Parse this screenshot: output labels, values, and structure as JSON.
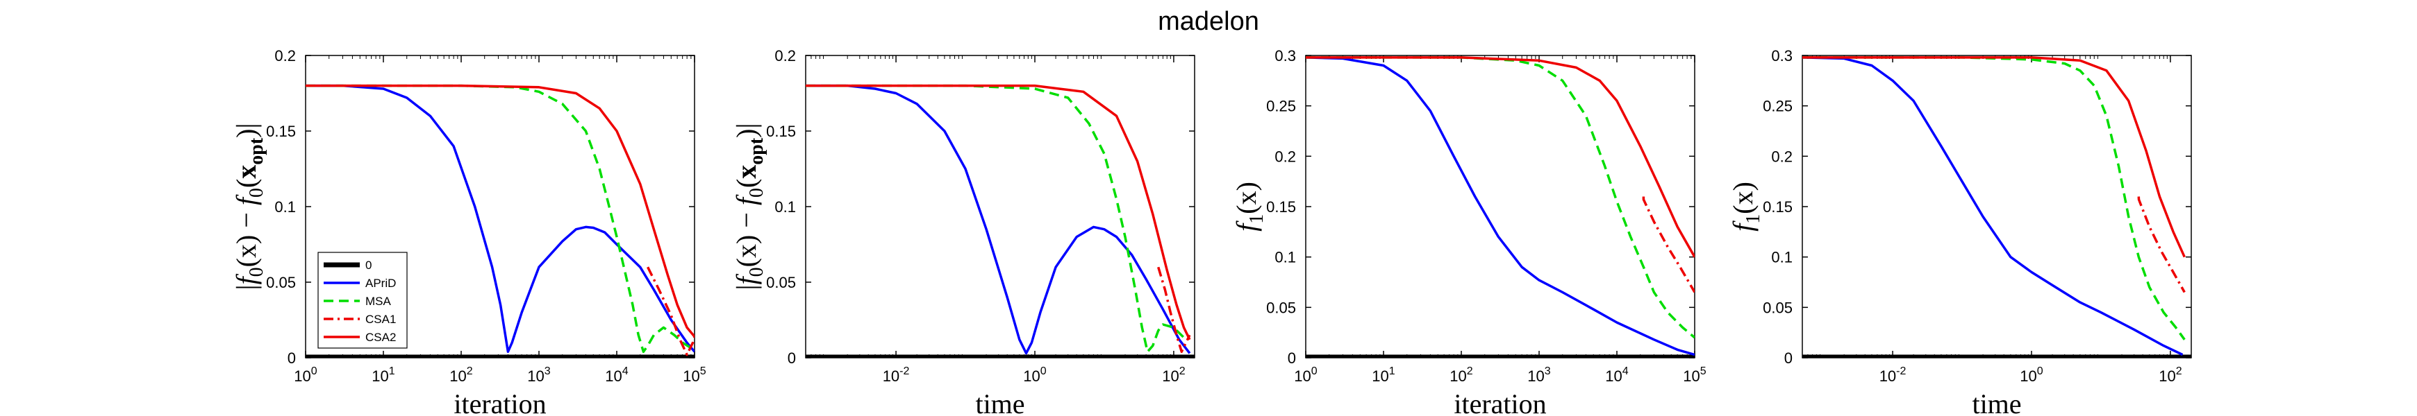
{
  "title": "madelon",
  "colors": {
    "zero": "#000000",
    "APriD": "#0000FF",
    "MSA": "#00DD00",
    "CSA1": "#EE0000",
    "CSA2": "#EE0000"
  },
  "chart_data": [
    {
      "type": "line",
      "xscale": "log",
      "xlabel": "iteration",
      "ylabel": "|f0(x) − f0(xopt)|",
      "ylim": [
        0,
        0.2
      ],
      "xlim": [
        1,
        100000
      ],
      "xticks": [
        1,
        10,
        100,
        1000,
        10000,
        100000
      ],
      "xticklabels": [
        "10^0",
        "10^1",
        "10^2",
        "10^3",
        "10^4",
        "10^5"
      ],
      "yticks": [
        0,
        0.05,
        0.1,
        0.15,
        0.2
      ],
      "yticklabels": [
        "0",
        "0.05",
        "0.1",
        "0.15",
        "0.2"
      ],
      "grid": false,
      "legend": {
        "placement": "lower-left",
        "entries": [
          "0",
          "APriD",
          "MSA",
          "CSA1",
          "CSA2"
        ]
      },
      "series": [
        {
          "name": "0",
          "style": "thick",
          "x": [
            1,
            100000
          ],
          "y": [
            0,
            0
          ]
        },
        {
          "name": "APriD",
          "style": "solid",
          "x": [
            1,
            3,
            10,
            20,
            40,
            80,
            150,
            250,
            320,
            400,
            450,
            600,
            1000,
            2000,
            3000,
            4000,
            5000,
            7000,
            10000,
            20000,
            30000,
            50000,
            80000,
            100000
          ],
          "y": [
            0.18,
            0.18,
            0.178,
            0.172,
            0.16,
            0.14,
            0.1,
            0.06,
            0.035,
            0.004,
            0.01,
            0.03,
            0.06,
            0.077,
            0.085,
            0.0865,
            0.086,
            0.083,
            0.075,
            0.06,
            0.045,
            0.025,
            0.01,
            0.004
          ]
        },
        {
          "name": "MSA",
          "style": "dashed",
          "x": [
            1,
            100,
            500,
            1000,
            2000,
            4000,
            6000,
            8000,
            10000,
            13000,
            16000,
            19000,
            22000,
            25000,
            30000,
            40000,
            55000,
            70000,
            100000
          ],
          "y": [
            0.18,
            0.18,
            0.179,
            0.176,
            0.168,
            0.15,
            0.125,
            0.1,
            0.08,
            0.055,
            0.035,
            0.015,
            0.004,
            0.008,
            0.015,
            0.02,
            0.015,
            0.01,
            0.005
          ]
        },
        {
          "name": "CSA1",
          "style": "dashdot",
          "x": [
            25000,
            35000,
            50000,
            65000,
            80000,
            95000,
            100000
          ],
          "y": [
            0.06,
            0.045,
            0.028,
            0.012,
            0.002,
            0.01,
            0.014
          ]
        },
        {
          "name": "CSA2",
          "style": "solid",
          "x": [
            1,
            100,
            1000,
            3000,
            6000,
            10000,
            20000,
            30000,
            45000,
            60000,
            80000,
            100000
          ],
          "y": [
            0.18,
            0.18,
            0.179,
            0.175,
            0.165,
            0.15,
            0.115,
            0.085,
            0.055,
            0.035,
            0.02,
            0.014
          ]
        }
      ]
    },
    {
      "type": "line",
      "xscale": "log",
      "xlabel": "time",
      "ylabel": "|f0(x) − f0(xopt)|",
      "ylim": [
        0,
        0.2
      ],
      "xlim": [
        0.0005,
        200
      ],
      "xticks": [
        0.01,
        1,
        100
      ],
      "xticklabels": [
        "10^-2",
        "10^0",
        "10^2"
      ],
      "yticks": [
        0,
        0.05,
        0.1,
        0.15,
        0.2
      ],
      "yticklabels": [
        "0",
        "0.05",
        "0.1",
        "0.15",
        "0.2"
      ],
      "grid": false,
      "series": [
        {
          "name": "0",
          "style": "thick",
          "x": [
            0.0005,
            200
          ],
          "y": [
            0,
            0
          ]
        },
        {
          "name": "APriD",
          "style": "solid",
          "x": [
            0.0005,
            0.002,
            0.005,
            0.01,
            0.02,
            0.05,
            0.1,
            0.2,
            0.4,
            0.6,
            0.75,
            0.9,
            1.2,
            2,
            4,
            7,
            10,
            15,
            25,
            40,
            70,
            120,
            170
          ],
          "y": [
            0.18,
            0.18,
            0.178,
            0.175,
            0.168,
            0.15,
            0.125,
            0.085,
            0.04,
            0.012,
            0.003,
            0.01,
            0.03,
            0.06,
            0.08,
            0.0865,
            0.085,
            0.08,
            0.068,
            0.052,
            0.032,
            0.012,
            0.003
          ]
        },
        {
          "name": "MSA",
          "style": "dashed",
          "x": [
            0.0005,
            0.1,
            1,
            3,
            6,
            10,
            15,
            20,
            28,
            35,
            42,
            50,
            60,
            70,
            100,
            150
          ],
          "y": [
            0.18,
            0.18,
            0.178,
            0.172,
            0.155,
            0.135,
            0.105,
            0.08,
            0.045,
            0.02,
            0.004,
            0.008,
            0.018,
            0.022,
            0.02,
            0.012
          ]
        },
        {
          "name": "CSA1",
          "style": "dashdot",
          "x": [
            60,
            75,
            90,
            110,
            130,
            150,
            170
          ],
          "y": [
            0.06,
            0.045,
            0.03,
            0.015,
            0.004,
            0.01,
            0.015
          ]
        },
        {
          "name": "CSA2",
          "style": "solid",
          "x": [
            0.0005,
            1,
            5,
            15,
            30,
            50,
            80,
            110,
            140,
            170
          ],
          "y": [
            0.18,
            0.18,
            0.176,
            0.16,
            0.13,
            0.095,
            0.058,
            0.035,
            0.02,
            0.012
          ]
        }
      ]
    },
    {
      "type": "line",
      "xscale": "log",
      "xlabel": "iteration",
      "ylabel": "f1(x)",
      "ylim": [
        0,
        0.3
      ],
      "xlim": [
        1,
        100000
      ],
      "xticks": [
        1,
        10,
        100,
        1000,
        10000,
        100000
      ],
      "xticklabels": [
        "10^0",
        "10^1",
        "10^2",
        "10^3",
        "10^4",
        "10^5"
      ],
      "yticks": [
        0,
        0.05,
        0.1,
        0.15,
        0.2,
        0.25,
        0.3
      ],
      "yticklabels": [
        "0",
        "0.05",
        "0.1",
        "0.15",
        "0.2",
        "0.25",
        "0.3"
      ],
      "grid": false,
      "series": [
        {
          "name": "0",
          "style": "thick",
          "x": [
            1,
            100000
          ],
          "y": [
            0,
            0
          ]
        },
        {
          "name": "APriD",
          "style": "solid",
          "x": [
            1,
            3,
            10,
            20,
            40,
            80,
            150,
            300,
            600,
            1000,
            2000,
            5000,
            10000,
            30000,
            60000,
            100000
          ],
          "y": [
            0.298,
            0.297,
            0.29,
            0.275,
            0.245,
            0.2,
            0.16,
            0.12,
            0.09,
            0.077,
            0.065,
            0.048,
            0.035,
            0.018,
            0.008,
            0.003
          ]
        },
        {
          "name": "MSA",
          "style": "dashed",
          "x": [
            1,
            100,
            500,
            1000,
            2000,
            4000,
            7000,
            10000,
            15000,
            22000,
            30000,
            45000,
            70000,
            100000
          ],
          "y": [
            0.298,
            0.298,
            0.295,
            0.29,
            0.275,
            0.24,
            0.19,
            0.155,
            0.12,
            0.09,
            0.065,
            0.045,
            0.03,
            0.02
          ]
        },
        {
          "name": "CSA1",
          "style": "dashdot",
          "x": [
            22000,
            22001,
            30000,
            45000,
            65000,
            100000
          ],
          "y": [
            0.16,
            0.157,
            0.135,
            0.11,
            0.09,
            0.065
          ]
        },
        {
          "name": "CSA2",
          "style": "solid",
          "x": [
            1,
            100,
            1000,
            3000,
            6000,
            10000,
            20000,
            35000,
            60000,
            100000
          ],
          "y": [
            0.298,
            0.298,
            0.295,
            0.288,
            0.275,
            0.255,
            0.21,
            0.17,
            0.13,
            0.1
          ]
        }
      ]
    },
    {
      "type": "line",
      "xscale": "log",
      "xlabel": "time",
      "ylabel": "f1(x)",
      "ylim": [
        0,
        0.3
      ],
      "xlim": [
        0.0005,
        200
      ],
      "xticks": [
        0.01,
        1,
        100
      ],
      "xticklabels": [
        "10^-2",
        "10^0",
        "10^2"
      ],
      "yticks": [
        0,
        0.05,
        0.1,
        0.15,
        0.2,
        0.25,
        0.3
      ],
      "yticklabels": [
        "0",
        "0.05",
        "0.1",
        "0.15",
        "0.2",
        "0.25",
        "0.3"
      ],
      "grid": false,
      "series": [
        {
          "name": "0",
          "style": "thick",
          "x": [
            0.0005,
            200
          ],
          "y": [
            0,
            0
          ]
        },
        {
          "name": "APriD",
          "style": "solid",
          "x": [
            0.0005,
            0.002,
            0.005,
            0.01,
            0.02,
            0.05,
            0.1,
            0.2,
            0.5,
            1,
            2,
            5,
            10,
            30,
            80,
            150
          ],
          "y": [
            0.298,
            0.297,
            0.29,
            0.275,
            0.255,
            0.21,
            0.175,
            0.14,
            0.1,
            0.085,
            0.072,
            0.055,
            0.045,
            0.028,
            0.012,
            0.003
          ]
        },
        {
          "name": "MSA",
          "style": "dashed",
          "x": [
            0.0005,
            0.1,
            1,
            3,
            5,
            8,
            12,
            18,
            25,
            35,
            50,
            80,
            120,
            160
          ],
          "y": [
            0.298,
            0.298,
            0.296,
            0.292,
            0.285,
            0.27,
            0.24,
            0.19,
            0.14,
            0.1,
            0.07,
            0.045,
            0.03,
            0.018
          ]
        },
        {
          "name": "CSA1",
          "style": "dashdot",
          "x": [
            35,
            35.1,
            50,
            75,
            110,
            160
          ],
          "y": [
            0.16,
            0.157,
            0.13,
            0.105,
            0.085,
            0.065
          ]
        },
        {
          "name": "CSA2",
          "style": "solid",
          "x": [
            0.0005,
            1,
            5,
            12,
            25,
            45,
            70,
            110,
            160
          ],
          "y": [
            0.298,
            0.298,
            0.295,
            0.285,
            0.255,
            0.205,
            0.16,
            0.125,
            0.1
          ]
        }
      ]
    }
  ]
}
